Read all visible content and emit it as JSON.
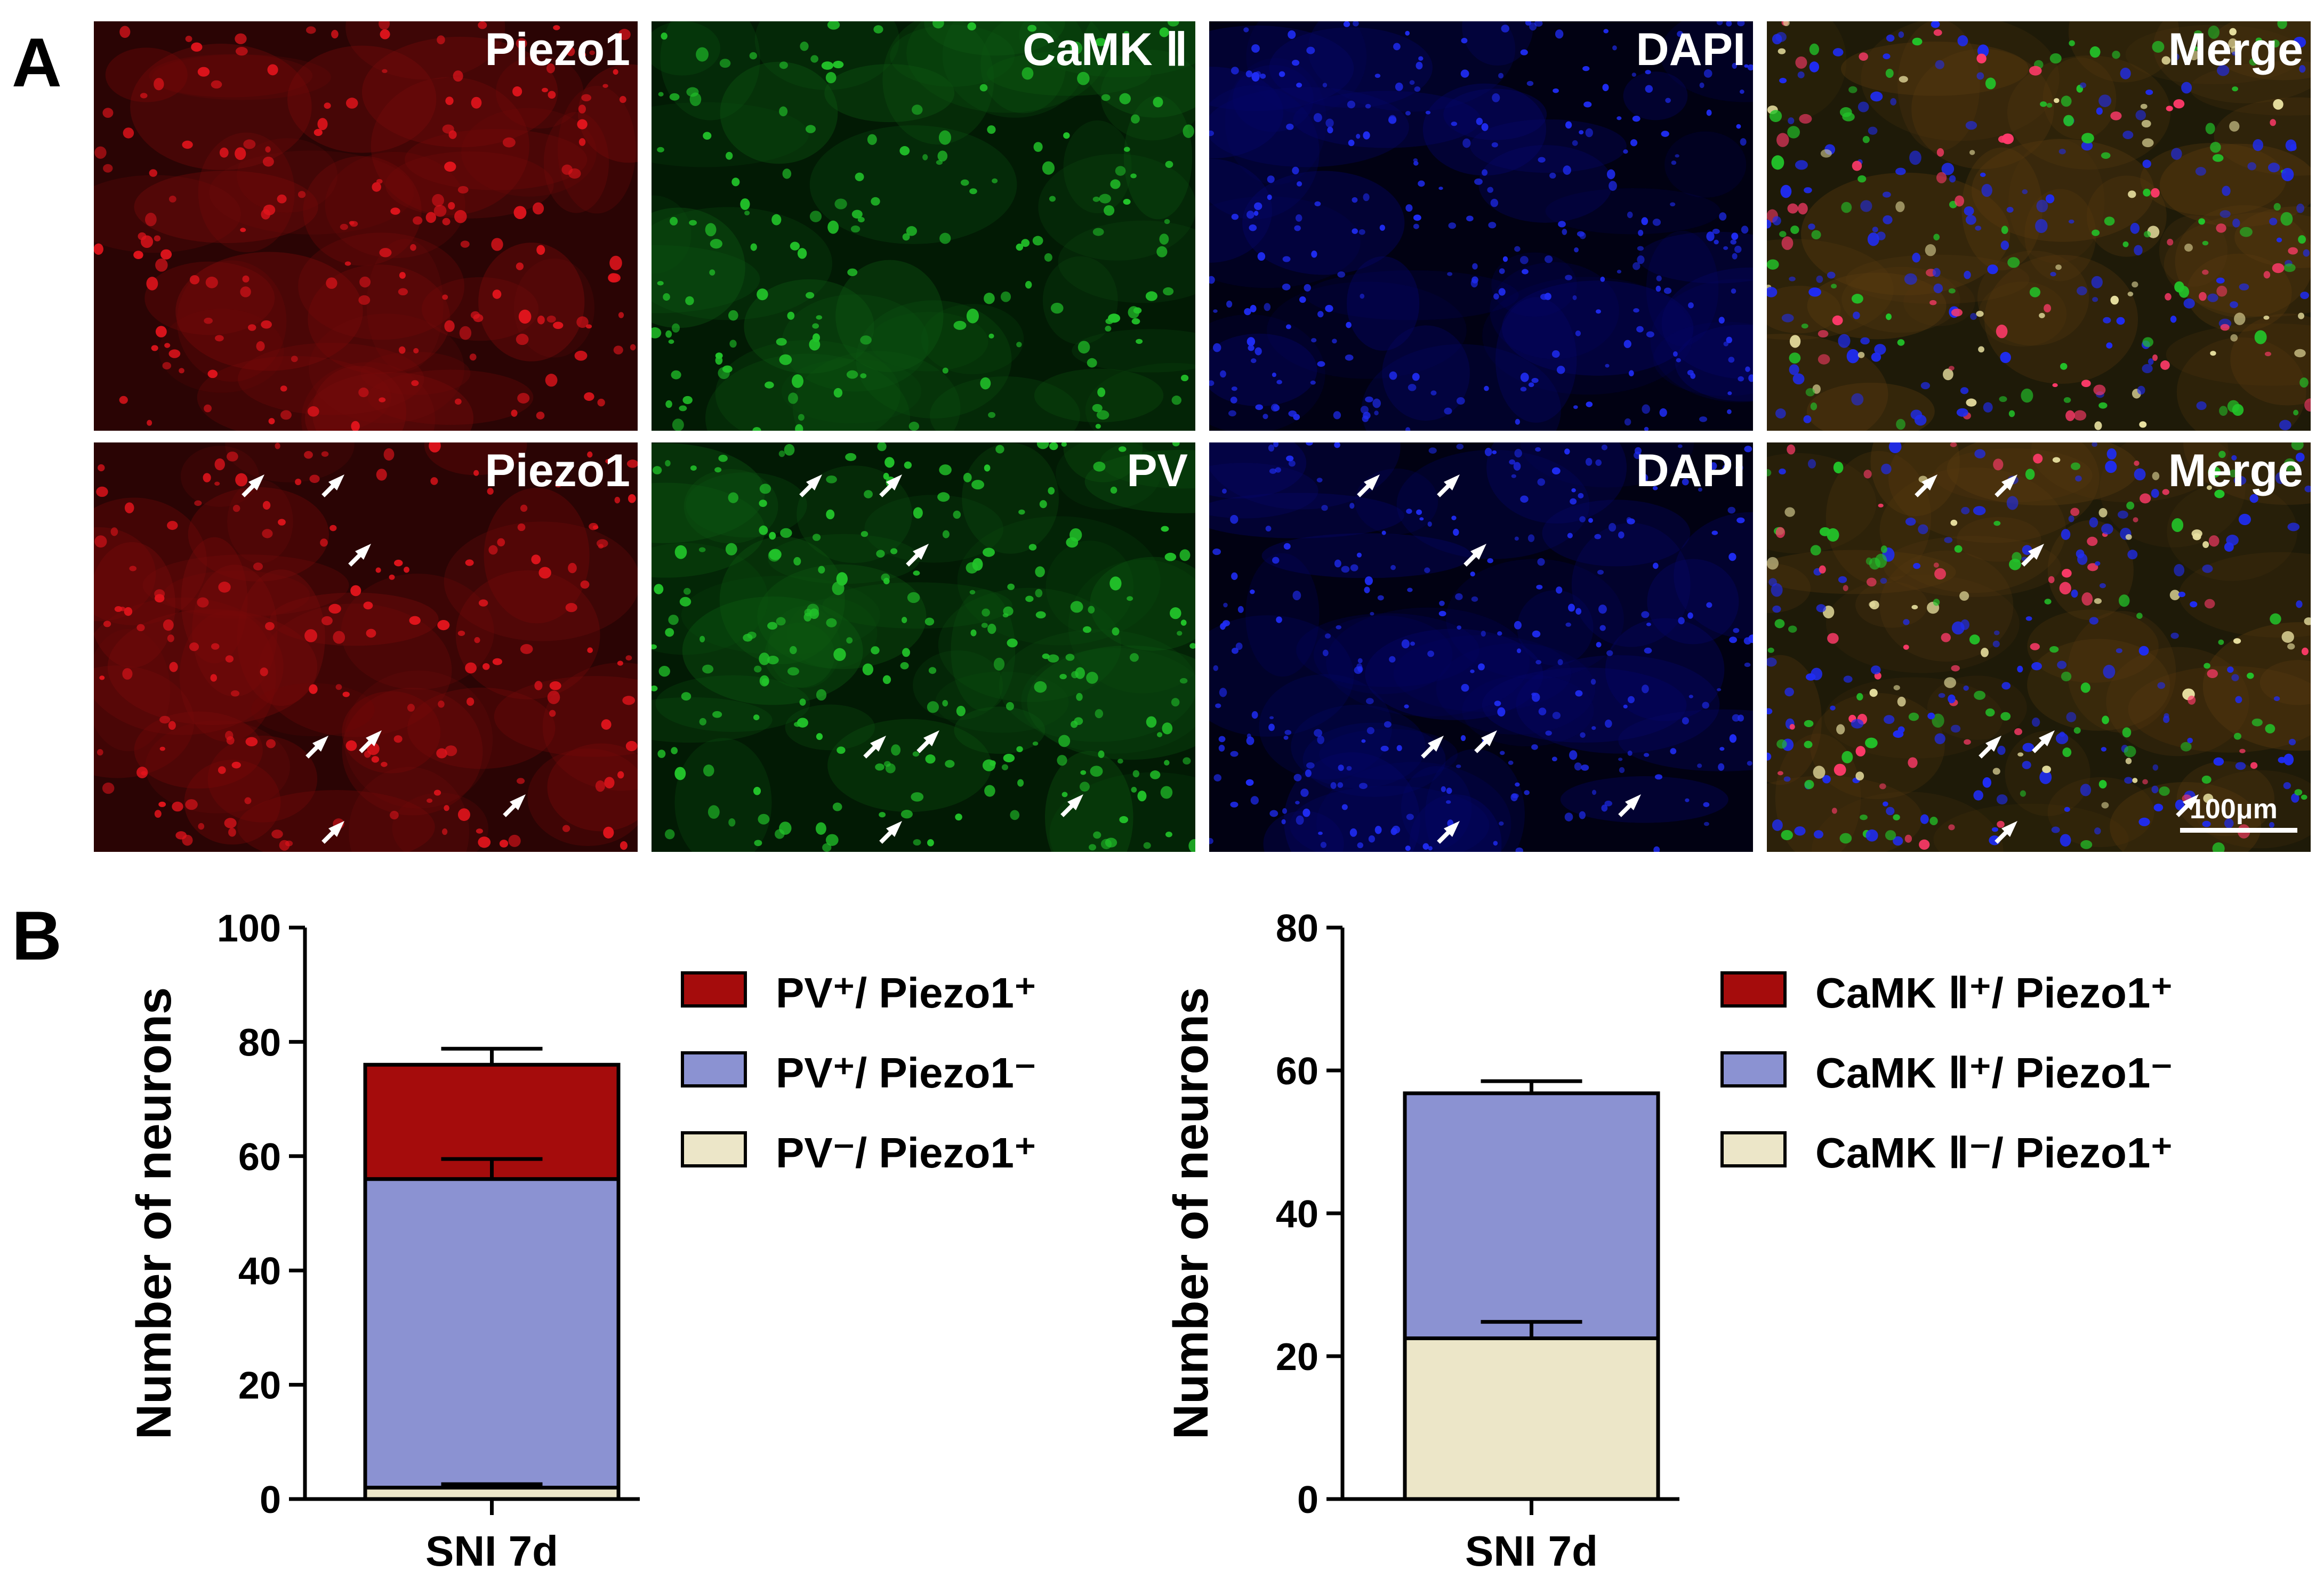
{
  "panel_labels": {
    "a": "A",
    "b": "B"
  },
  "micrographs": {
    "rows": [
      {
        "tiles": [
          {
            "label": "Piezo1",
            "channel": "red"
          },
          {
            "label": "CaMK Ⅱ",
            "channel": "green"
          },
          {
            "label": "DAPI",
            "channel": "blue"
          },
          {
            "label": "Merge",
            "channel": "merge"
          }
        ]
      },
      {
        "tiles": [
          {
            "label": "Piezo1",
            "channel": "red"
          },
          {
            "label": "PV",
            "channel": "green"
          },
          {
            "label": "DAPI",
            "channel": "blue"
          },
          {
            "label": "Merge",
            "channel": "merge"
          }
        ]
      }
    ],
    "scale_bar": "100μm",
    "colors": {
      "red": "#e0141c",
      "green": "#22c42a",
      "blue": "#1f2cf2"
    }
  },
  "chart_data": [
    {
      "type": "bar",
      "stacked": true,
      "categories": [
        "SNI 7d"
      ],
      "ylabel": "Number of neurons",
      "ylim": [
        0,
        100
      ],
      "yticks": [
        0,
        20,
        40,
        60,
        80,
        100
      ],
      "legend_position": "right",
      "series": [
        {
          "name": "PV⁻/ Piezo1⁺",
          "values": [
            2
          ],
          "error": [
            0.6
          ],
          "color": "#ece6c8"
        },
        {
          "name": "PV⁺/ Piezo1⁻",
          "values": [
            54
          ],
          "error": [
            3.5
          ],
          "color": "#8b92d2"
        },
        {
          "name": "PV⁺/ Piezo1⁺",
          "values": [
            20
          ],
          "error": [
            2.8
          ],
          "color": "#a50c0c"
        }
      ]
    },
    {
      "type": "bar",
      "stacked": true,
      "categories": [
        "SNI 7d"
      ],
      "ylabel": "Number of neurons",
      "ylim": [
        0,
        80
      ],
      "yticks": [
        0,
        20,
        40,
        60,
        80
      ],
      "legend_position": "right",
      "series": [
        {
          "name": "CaMK Ⅱ⁻/ Piezo1⁺",
          "values": [
            22.5
          ],
          "error": [
            2.3
          ],
          "color": "#ece6c8"
        },
        {
          "name": "CaMK Ⅱ⁺/ Piezo1⁻",
          "values": [
            34.3
          ],
          "error": [
            1.7
          ],
          "color": "#8b92d2"
        },
        {
          "name": "CaMK Ⅱ⁺/ Piezo1⁺",
          "values": [
            0
          ],
          "error": [
            0
          ],
          "color": "#a50c0c"
        }
      ]
    }
  ]
}
